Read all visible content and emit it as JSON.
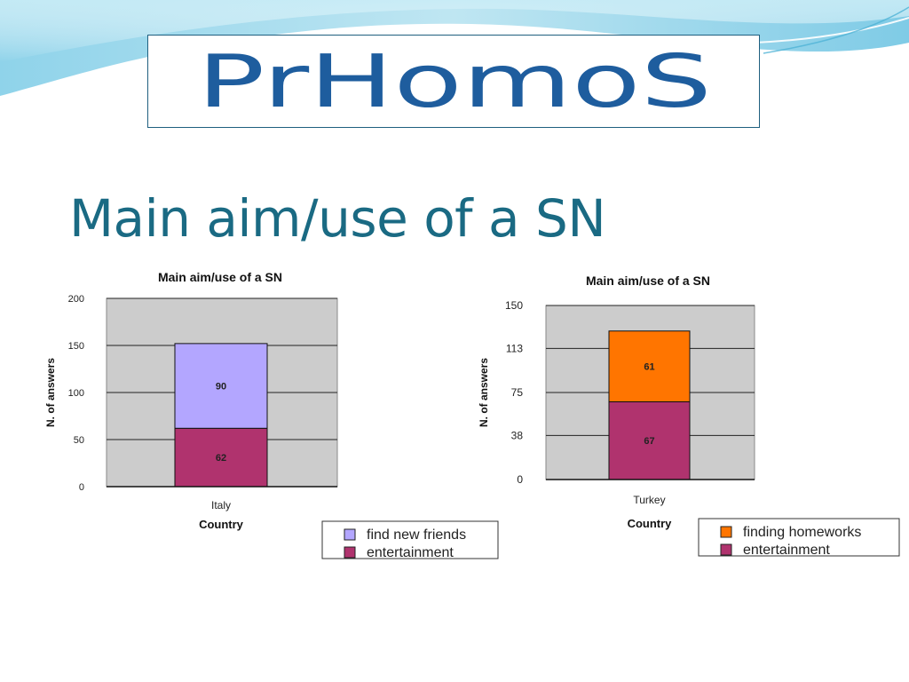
{
  "logo": {
    "text": "PrHomoS"
  },
  "slide_title": "Main aim/use of a SN",
  "colors": {
    "title": "#1a6a83",
    "logo_text": "#1e5d9e",
    "find_new_friends": "#b3a6ff",
    "entertainment": "#b0336e",
    "finding_homeworks": "#ff7500",
    "plot_area": "#cccccc"
  },
  "chart_data": [
    {
      "type": "bar",
      "stacked": true,
      "title": "Main aim/use of a SN",
      "xlabel": "Country",
      "ylabel": "N. of answers",
      "categories": [
        "Italy"
      ],
      "ylim": [
        0,
        200
      ],
      "yticks": [
        0,
        50,
        100,
        150,
        200
      ],
      "series": [
        {
          "name": "entertainment",
          "values": [
            62
          ],
          "color": "#b0336e"
        },
        {
          "name": "find new friends",
          "values": [
            90
          ],
          "color": "#b3a6ff"
        }
      ],
      "legend": [
        "find new friends",
        "entertainment"
      ],
      "legend_position": "bottom-right",
      "grid": true
    },
    {
      "type": "bar",
      "stacked": true,
      "title": "Main aim/use of a SN",
      "xlabel": "Country",
      "ylabel": "N. of answers",
      "categories": [
        "Turkey"
      ],
      "ylim": [
        0,
        150
      ],
      "yticks": [
        0,
        38,
        75,
        113,
        150
      ],
      "series": [
        {
          "name": "entertainment",
          "values": [
            67
          ],
          "color": "#b0336e"
        },
        {
          "name": "finding homeworks",
          "values": [
            61
          ],
          "color": "#ff7500"
        }
      ],
      "legend": [
        "finding homeworks",
        "entertainment"
      ],
      "legend_position": "bottom-right",
      "grid": true
    }
  ]
}
